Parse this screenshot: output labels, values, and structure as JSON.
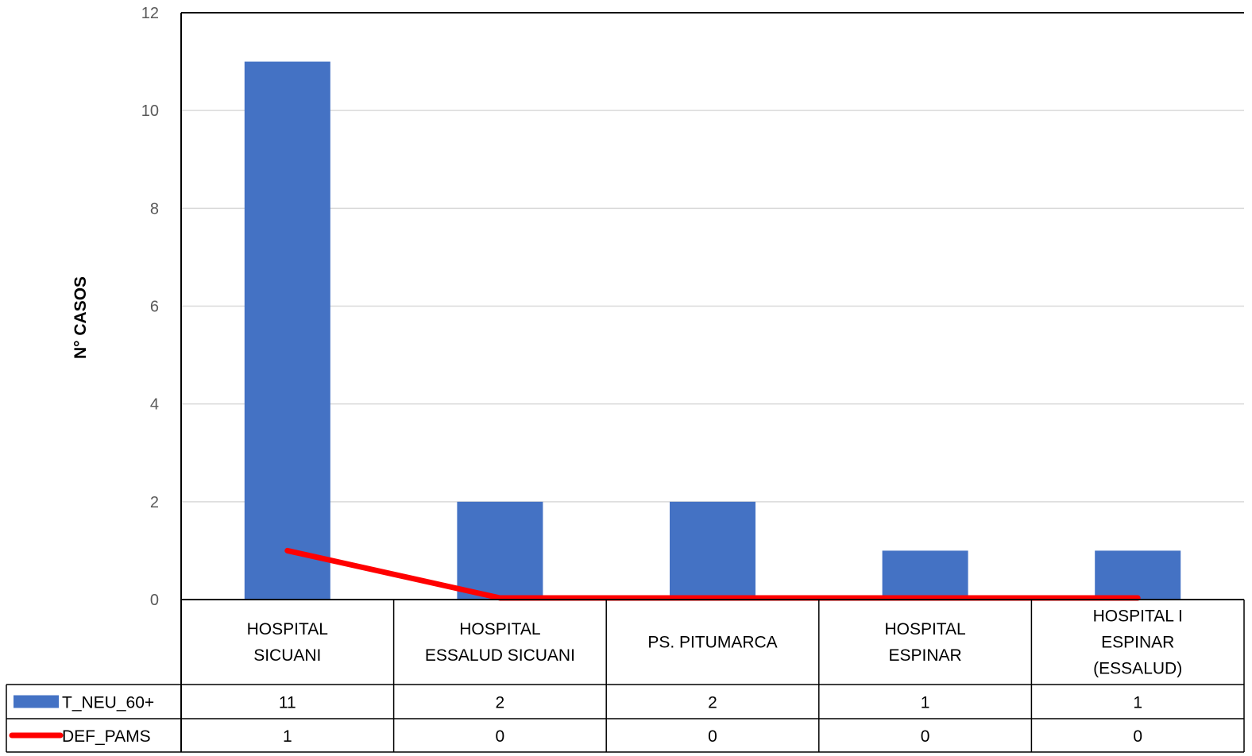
{
  "chart_data": {
    "type": "bar",
    "title": "",
    "xlabel": "",
    "ylabel": "N° CASOS",
    "ylim": [
      0,
      12
    ],
    "yticks": [
      0,
      2,
      4,
      6,
      8,
      10,
      12
    ],
    "grid": true,
    "legend": "data-table-left",
    "categories": [
      [
        "HOSPITAL",
        "SICUANI"
      ],
      [
        "HOSPITAL",
        "ESSALUD SICUANI"
      ],
      [
        "PS. PITUMARCA"
      ],
      [
        "HOSPITAL",
        "ESPINAR"
      ],
      [
        "HOSPITAL I",
        "ESPINAR",
        "(ESSALUD)"
      ]
    ],
    "series": [
      {
        "name": "T_NEU_60+",
        "kind": "bar",
        "color": "#4472C4",
        "values": [
          11,
          2,
          2,
          1,
          1
        ]
      },
      {
        "name": "DEF_PAMS",
        "kind": "line",
        "color": "#FF0000",
        "values": [
          1,
          0,
          0,
          0,
          0
        ]
      }
    ]
  }
}
